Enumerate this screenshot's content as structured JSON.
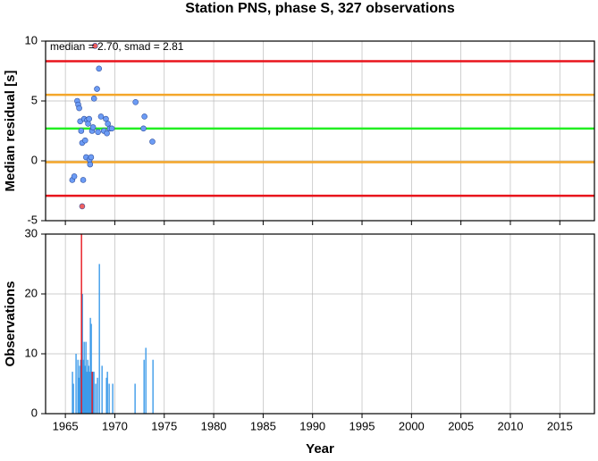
{
  "title": "Station PNS, phase S, 327 observations",
  "chart_data": [
    {
      "type": "scatter",
      "ylabel": "Median residual [s]",
      "annotation": "median = 2.70, smad = 2.81",
      "xlim": [
        1963,
        2018.5
      ],
      "xticks": [
        1965,
        1970,
        1975,
        1980,
        1985,
        1990,
        1995,
        2000,
        2005,
        2010,
        2015
      ],
      "ylim": [
        -5,
        10
      ],
      "yticks": [
        -5,
        0,
        5,
        10
      ],
      "grid": true,
      "hlines": [
        {
          "value": 8.32,
          "color": "#e8141c"
        },
        {
          "value": 5.51,
          "color": "#f4a62a"
        },
        {
          "value": 2.7,
          "color": "#22ee22"
        },
        {
          "value": -0.11,
          "color": "#f4a62a"
        },
        {
          "value": -2.92,
          "color": "#e8141c"
        }
      ],
      "series": [
        {
          "color": "#6c9cf5",
          "x": [
            1965.7,
            1965.9,
            1966.2,
            1966.3,
            1966.4,
            1966.5,
            1966.6,
            1966.7,
            1966.8,
            1966.9,
            1967.0,
            1967.1,
            1967.2,
            1967.3,
            1967.4,
            1967.45,
            1967.5,
            1967.6,
            1967.7,
            1967.8,
            1967.9,
            1968.2,
            1968.4,
            1968.3,
            1968.6,
            1968.9,
            1969.1,
            1969.2,
            1969.3,
            1969.5,
            1969.7,
            1972.1,
            1973.0,
            1972.9,
            1973.8
          ],
          "values": [
            -1.6,
            -1.3,
            5.0,
            4.7,
            4.4,
            3.3,
            2.5,
            1.5,
            -1.6,
            3.5,
            1.7,
            0.3,
            3.4,
            3.1,
            3.5,
            0.1,
            -0.3,
            0.3,
            2.5,
            2.8,
            5.2,
            6.0,
            7.7,
            2.4,
            3.7,
            2.5,
            3.5,
            2.3,
            3.1,
            2.7,
            2.7,
            4.9,
            3.7,
            2.7,
            1.6
          ]
        },
        {
          "color": "#f06060",
          "x": [
            1968.0,
            1966.7
          ],
          "values": [
            9.6,
            -3.8
          ]
        }
      ]
    },
    {
      "type": "bar",
      "ylabel": "Observations",
      "xlabel": "Year",
      "xlim": [
        1963,
        2018.5
      ],
      "xticks": [
        1965,
        1970,
        1975,
        1980,
        1985,
        1990,
        1995,
        2000,
        2005,
        2010,
        2015
      ],
      "ylim": [
        0,
        30
      ],
      "yticks": [
        0,
        10,
        20,
        30
      ],
      "grid": true,
      "series": [
        {
          "color": "#3d9be9",
          "x": [
            1965.72,
            1965.81,
            1966.08,
            1966.27,
            1966.36,
            1966.45,
            1966.54,
            1966.72,
            1966.81,
            1966.9,
            1966.99,
            1967.08,
            1967.17,
            1967.26,
            1967.35,
            1967.44,
            1967.53,
            1967.62,
            1967.8,
            1967.89,
            1968.07,
            1968.25,
            1968.44,
            1968.71,
            1969.16,
            1969.25,
            1969.43,
            1969.79,
            1972.05,
            1972.96,
            1973.14,
            1973.86
          ],
          "values": [
            7,
            5,
            10,
            9,
            6,
            8,
            9,
            20,
            9,
            12,
            8,
            12,
            7,
            9,
            8,
            7,
            16,
            15,
            7,
            7,
            5,
            6,
            25,
            8,
            6,
            7,
            5,
            5,
            5,
            9,
            11,
            9
          ]
        },
        {
          "color": "#e8141c",
          "x": [
            1966.63,
            1967.71
          ],
          "values": [
            30,
            7
          ]
        }
      ]
    }
  ]
}
